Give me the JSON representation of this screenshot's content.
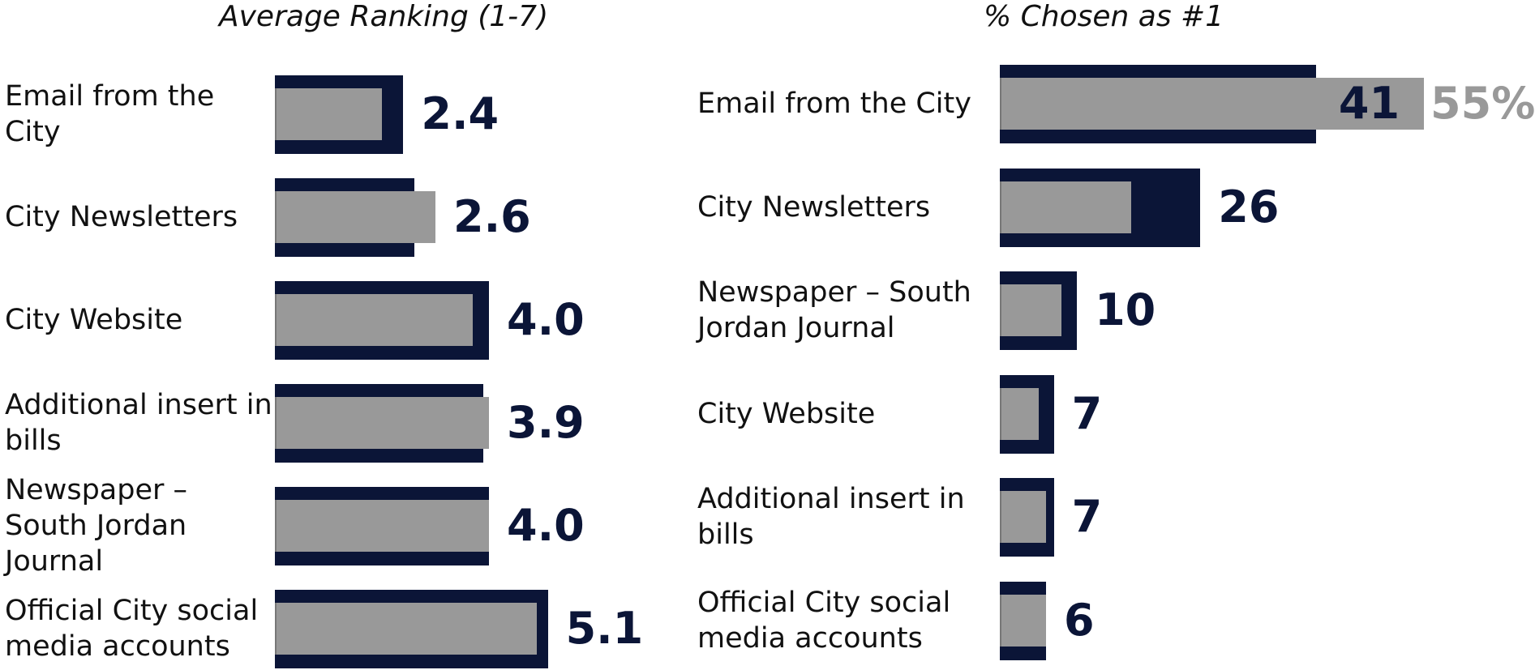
{
  "chart_data": [
    {
      "type": "bar",
      "title": "Average Ranking (1-7)",
      "categories": [
        "Email from the City",
        "City Newsletters",
        "City Website",
        "Additional insert in bills",
        "Newspaper – South Jordan Journal",
        "Official City social media accounts"
      ],
      "series": [
        {
          "color": "#0b1537",
          "values": [
            2.4,
            2.6,
            4.0,
            3.9,
            4.0,
            5.1
          ],
          "value_labels": [
            "2.4",
            "2.6",
            "4.0",
            "3.9",
            "4.0",
            "5.1"
          ]
        },
        {
          "color": "#999999",
          "values": [
            2.0,
            3.0,
            3.7,
            4.0,
            4.0,
            4.9
          ]
        }
      ]
    },
    {
      "type": "bar",
      "title": "% Chosen as #1",
      "categories": [
        "Email from the City",
        "City Newsletters",
        "Newspaper – South Jordan Journal",
        "City Website",
        "Additional insert in bills",
        "Official City social media accounts"
      ],
      "series": [
        {
          "color": "#0b1537",
          "values": [
            41,
            26,
            10,
            7,
            7,
            6
          ]
        },
        {
          "color": "#999999",
          "values": [
            55,
            17,
            8,
            5,
            6,
            6
          ],
          "value_labels": [
            "55%",
            null,
            null,
            null,
            null,
            null
          ]
        }
      ]
    }
  ]
}
